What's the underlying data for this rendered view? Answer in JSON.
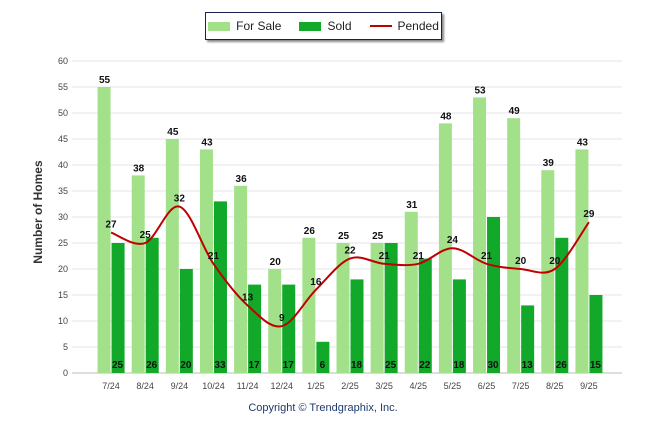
{
  "chart_data": {
    "type": "bar",
    "ylabel": "Number of Homes",
    "ylim": [
      0,
      60
    ],
    "yticks": [
      0,
      5,
      10,
      15,
      20,
      25,
      30,
      35,
      40,
      45,
      50,
      55,
      60
    ],
    "grid": true,
    "legend_position": "top-center",
    "categories": [
      "7/24",
      "8/24",
      "9/24",
      "10/24",
      "11/24",
      "12/24",
      "1/25",
      "2/25",
      "3/25",
      "4/25",
      "5/25",
      "6/25",
      "7/25",
      "8/25",
      "9/25"
    ],
    "series": [
      {
        "name": "For Sale",
        "type": "bar",
        "color": "#a3e08a",
        "values": [
          55,
          38,
          45,
          43,
          36,
          20,
          26,
          25,
          25,
          31,
          48,
          53,
          49,
          39,
          43
        ]
      },
      {
        "name": "Sold",
        "type": "bar",
        "color": "#12a82a",
        "values": [
          25,
          26,
          20,
          33,
          17,
          17,
          6,
          18,
          25,
          22,
          18,
          30,
          13,
          26,
          15
        ]
      },
      {
        "name": "Pended",
        "type": "line",
        "color": "#c00000",
        "values": [
          27,
          25,
          32,
          21,
          13,
          9,
          16,
          22,
          21,
          21,
          24,
          21,
          20,
          20,
          29
        ]
      }
    ],
    "copyright": "Copyright © Trendgraphix, Inc."
  }
}
